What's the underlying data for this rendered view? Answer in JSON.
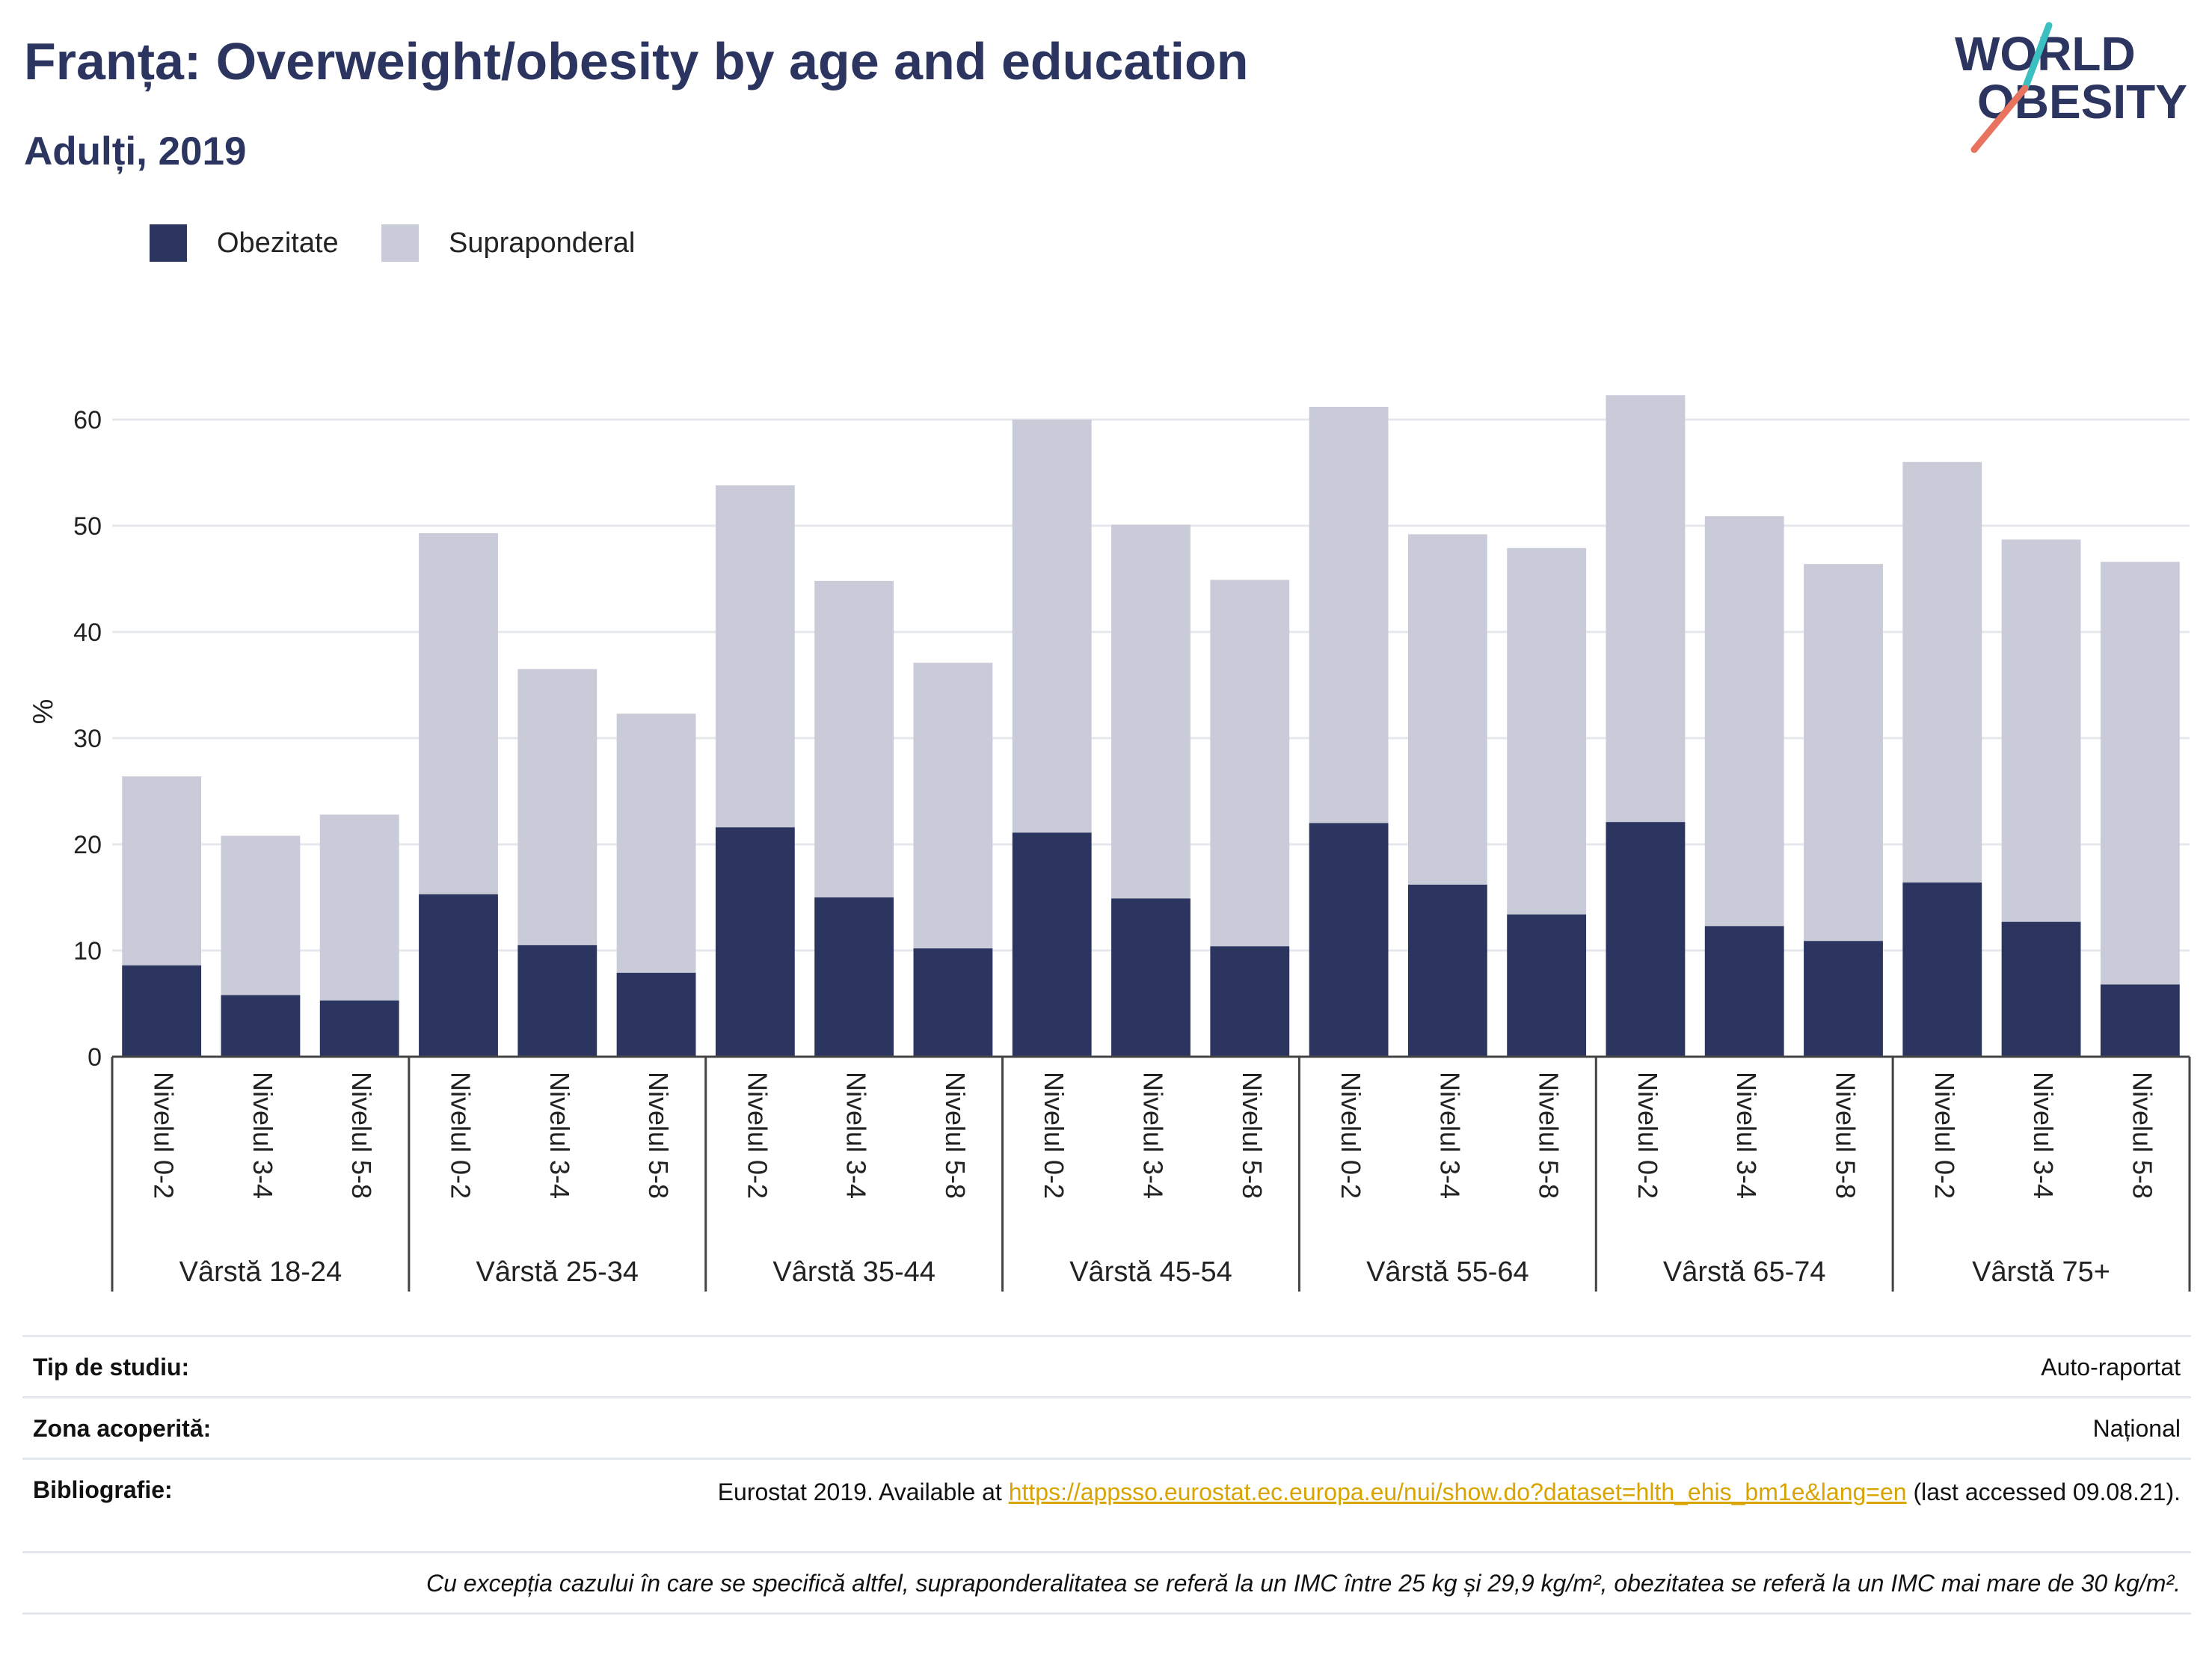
{
  "header": {
    "title": "Franța: Overweight/obesity by age and education",
    "subtitle": "Adulți, 2019"
  },
  "logo": {
    "line1": "WORLD",
    "line2": "OBESITY",
    "accent_teal": "#3bbfc0",
    "accent_coral": "#e8735f",
    "text_color": "#2b3560"
  },
  "colors": {
    "obesity": "#2b3560",
    "overweight": "#c9cbd8",
    "grid": "#e4e8ec",
    "axis": "#444444"
  },
  "chart_data": {
    "type": "bar",
    "stacked": true,
    "ylabel": "%",
    "ylim": [
      0,
      65
    ],
    "yticks": [
      0,
      10,
      20,
      30,
      40,
      50,
      60
    ],
    "grid": true,
    "legend_position": "top-left",
    "groups": [
      "Vârstă 18-24",
      "Vârstă 25-34",
      "Vârstă 35-44",
      "Vârstă 45-54",
      "Vârstă 55-64",
      "Vârstă 65-74",
      "Vârstă 75+"
    ],
    "subcategories": [
      "Nivelul 0-2",
      "Nivelul 3-4",
      "Nivelul 5-8"
    ],
    "series": [
      {
        "name": "Obezitate",
        "values": [
          8.6,
          5.8,
          5.3,
          15.3,
          10.5,
          7.9,
          21.6,
          15.0,
          10.2,
          21.1,
          14.9,
          10.4,
          22.0,
          16.2,
          13.4,
          22.1,
          12.3,
          10.9,
          16.4,
          12.7,
          6.8
        ]
      },
      {
        "name": "Supraponderal",
        "values": [
          17.8,
          15.0,
          17.5,
          34.0,
          26.0,
          24.4,
          32.2,
          29.8,
          26.9,
          38.9,
          35.2,
          34.5,
          39.2,
          33.0,
          34.5,
          40.2,
          38.6,
          35.5,
          39.6,
          36.0,
          39.8
        ]
      }
    ]
  },
  "meta": {
    "rows": [
      {
        "label": "Tip de studiu:",
        "value": "Auto-raportat"
      },
      {
        "label": "Zona acoperită:",
        "value": "Național"
      }
    ],
    "bibliography": {
      "label": "Bibliografie:",
      "prefix": "Eurostat 2019. Available at",
      "link": "https://appsso.eurostat.ec.europa.eu/nui/show.do?dataset=hlth_ehis_bm1e&lang=en",
      "suffix": "(last accessed 09.08.21)."
    },
    "note": "Cu excepția cazului în care se specifică altfel, supraponderalitatea se referă la un IMC între 25 kg și 29,9 kg/m², obezitatea se referă la un IMC mai mare de 30 kg/m²."
  }
}
